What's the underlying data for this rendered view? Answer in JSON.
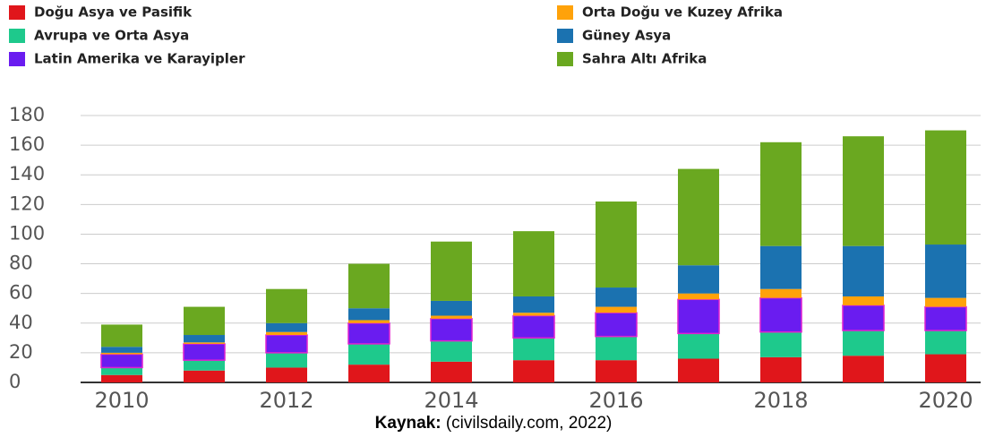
{
  "chart_data": {
    "type": "stacked_bar",
    "categories": [
      "2010",
      null,
      "2012",
      null,
      "2014",
      null,
      "2016",
      null,
      "2018",
      null,
      "2020"
    ],
    "series": [
      {
        "name": "Doğu Asya ve Pasifik",
        "color": "#e0161b",
        "values": [
          5,
          8,
          10,
          12,
          14,
          15,
          15,
          16,
          17,
          18,
          19
        ]
      },
      {
        "name": "Avrupa ve Orta Asya",
        "color": "#1ec98c",
        "values": [
          5,
          7,
          10,
          14,
          14,
          15,
          16,
          17,
          17,
          17,
          16
        ]
      },
      {
        "name": "Latin Amerika ve Karayipler",
        "color": "#6a1cf0",
        "values": [
          9,
          11,
          12,
          14,
          15,
          15,
          16,
          23,
          23,
          17,
          16
        ]
      },
      {
        "name": "Orta Doğu ve Kuzey Afrika",
        "color": "#ffa20a",
        "values": [
          1,
          1,
          2,
          2,
          2,
          2,
          4,
          4,
          6,
          6,
          6
        ]
      },
      {
        "name": "Güney Asya",
        "color": "#1b72b0",
        "values": [
          4,
          5,
          6,
          8,
          10,
          11,
          13,
          19,
          29,
          34,
          36
        ]
      },
      {
        "name": "Sahra Altı Afrika",
        "color": "#6aa820",
        "values": [
          15,
          19,
          23,
          30,
          40,
          44,
          58,
          65,
          70,
          74,
          77
        ]
      }
    ],
    "ylim": [
      0,
      180
    ],
    "yticks": [
      0,
      20,
      40,
      60,
      80,
      100,
      120,
      140,
      160,
      180
    ],
    "grid": true,
    "source": {
      "label": "Kaynak:",
      "text": "(civilsdaily.com, 2022)"
    }
  }
}
